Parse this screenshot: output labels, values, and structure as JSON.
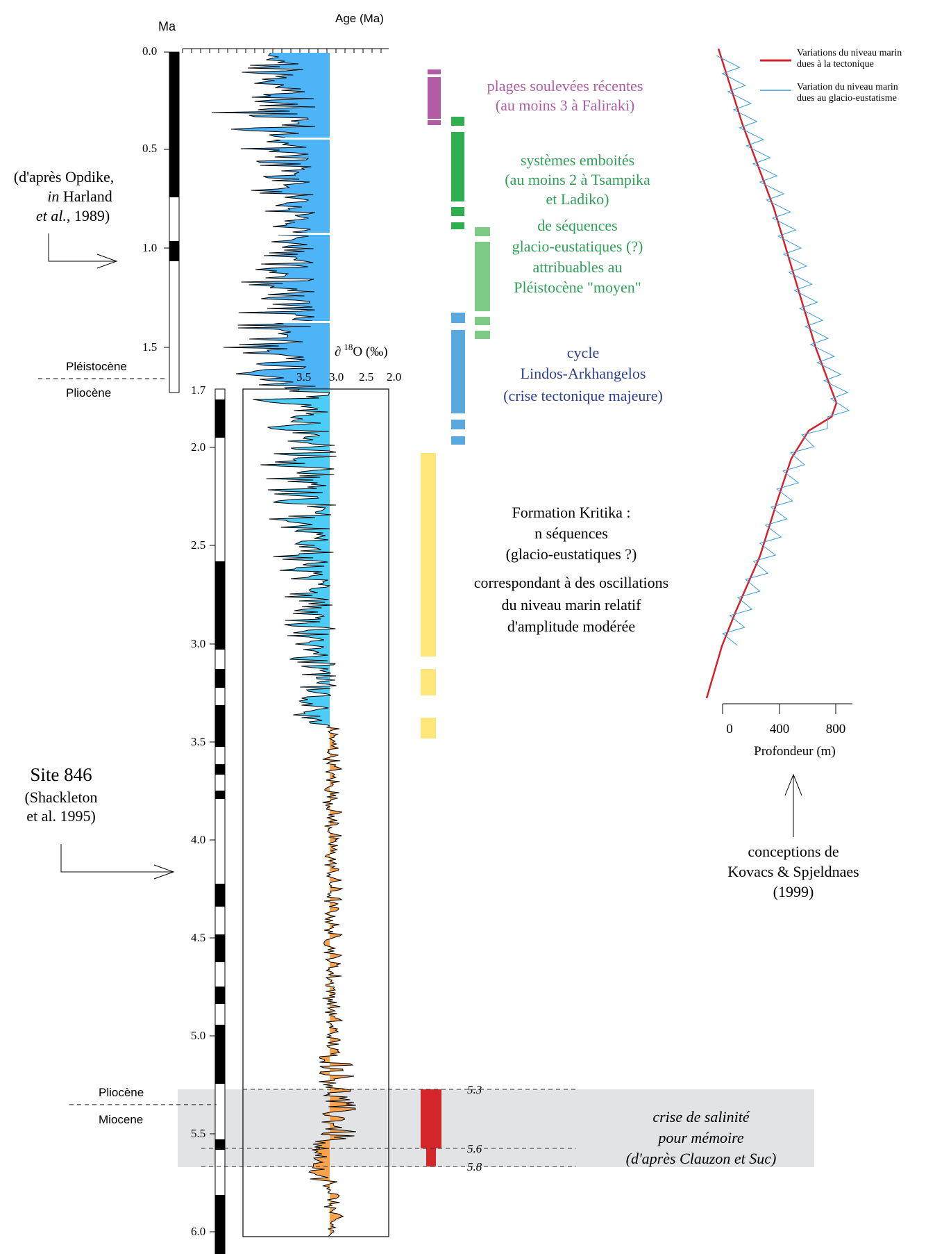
{
  "top_axis": {
    "ma_label": "Ma",
    "age_label": "Age (Ma)"
  },
  "upper_ticks": [
    "0.0",
    "0.5",
    "1.0",
    "1.5",
    "1.7"
  ],
  "lower_ticks": [
    "2.0",
    "2.5",
    "3.0",
    "3.5",
    "4.0",
    "4.5",
    "5.0",
    "5.5",
    "6.0"
  ],
  "boundaries": {
    "pleistocene": "Pléistocène",
    "pliocene_upper": "Pliocène",
    "pliocene_lower": "Pliocène",
    "miocene": "Miocene"
  },
  "delta18o": {
    "label": "∂",
    "superscript": "18",
    "unit": "O (‰)",
    "scale": [
      "3.5",
      "3.0",
      "2.5",
      "2.0"
    ]
  },
  "opdike_credit": {
    "line1": "(d'après Opdike,",
    "line2_italic": "in",
    "line2_rest": " Harland",
    "line3_italic": "et al.",
    "line3_rest": ", 1989)"
  },
  "site846": {
    "line1": "Site 846",
    "line2": "(Shackleton",
    "line3": "et al. 1995)"
  },
  "annotations": {
    "plages": [
      "plages soulevées récentes",
      "(au moins 3 à Faliraki)"
    ],
    "systemes": [
      "systèmes emboités",
      "(au moins 2 à Tsampika",
      "et Ladiko)",
      "de séquences",
      "glacio-eustatiques (?)",
      "attribuables au",
      "Pléistocène \"moyen\""
    ],
    "cycle": [
      "cycle",
      "Lindos-Arkhangelos",
      "(crise tectonique majeure)"
    ],
    "kritika": [
      "Formation Kritika :",
      "n séquences",
      "(glacio-eustatiques ?)",
      "correspondant à des oscillations",
      "du niveau marin relatif",
      "d'amplitude modérée"
    ],
    "salinity": [
      "crise de salinité",
      "pour mémoire",
      "(d'après Clauzon et Suc)"
    ],
    "salinity_ages": [
      "5.3",
      "5.6",
      "5.8"
    ]
  },
  "kovacs": {
    "legend_tectonic": [
      "Variations du niveau marin",
      "dues à la tectonique"
    ],
    "legend_glacio": [
      "Variation du niveau marin",
      "dues au glacio-eustatisme"
    ],
    "axis_ticks": [
      "0",
      "400",
      "800"
    ],
    "axis_label": "Profondeur (m)",
    "credit": [
      "conceptions de",
      "Kovacs & Spjeldnaes",
      "(1999)"
    ]
  },
  "colors": {
    "blue_fill": "#4db4f8",
    "cyan_fill": "#4ccdf7",
    "orange_fill": "#f9a24b",
    "magenta": "#b25ca6",
    "green_dark": "#2fae4f",
    "green_light": "#7fcb85",
    "blue_bar": "#5aa9de",
    "yellow": "#fde77a",
    "red_bar": "#d4252b",
    "gray_band": "#e1e3e5",
    "red_line": "#d6212a",
    "blue_line": "#3a9bd8"
  }
}
